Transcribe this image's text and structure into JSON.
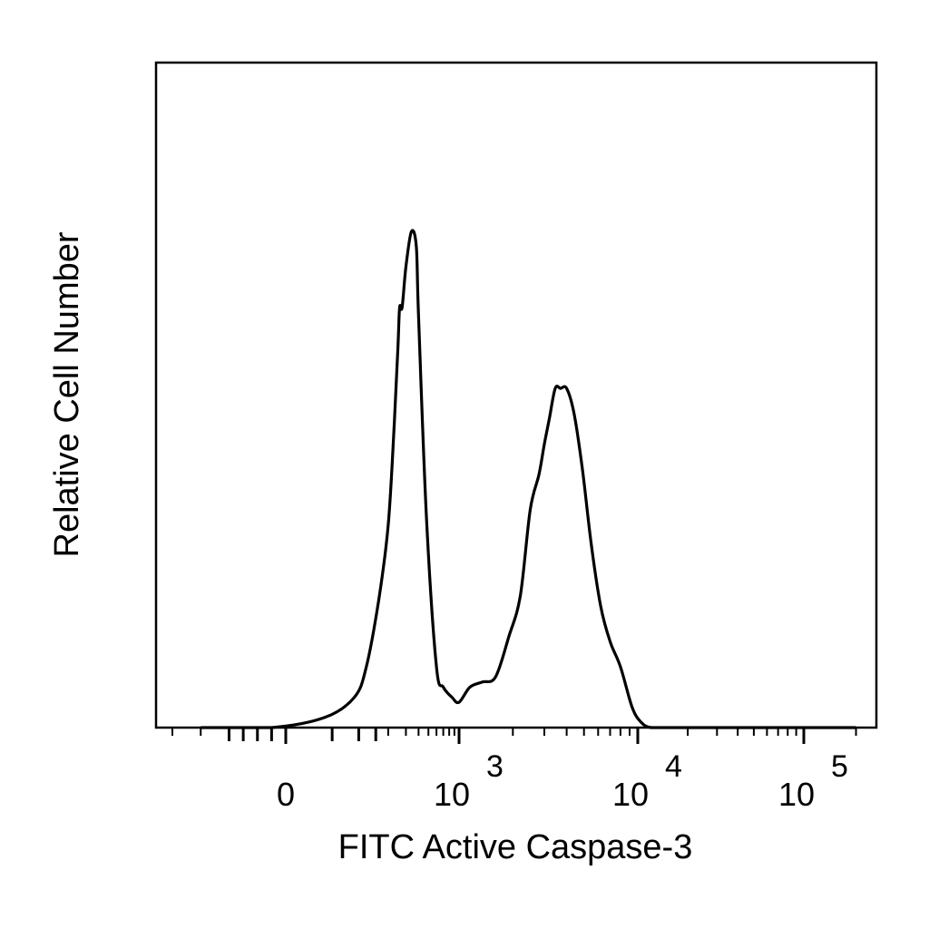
{
  "chart_data": {
    "type": "line",
    "xlabel": "FITC Active Caspase-3",
    "ylabel": "Relative Cell Number",
    "x_scale": "biexponential (logicle)",
    "x_ticks": [
      {
        "base": "0",
        "exp": ""
      },
      {
        "base": "10",
        "exp": "3"
      },
      {
        "base": "10",
        "exp": "4"
      },
      {
        "base": "10",
        "exp": "5"
      }
    ],
    "y_ticks": [],
    "grid": false,
    "legend": "none",
    "series": [
      {
        "color": "#000000",
        "x": [
          -300,
          -50,
          40,
          90,
          120,
          160,
          200,
          230,
          250,
          260,
          275,
          300,
          340,
          380,
          400,
          480,
          600,
          700,
          850,
          1000,
          1150,
          1350,
          1600,
          1900,
          2200,
          2500,
          2800,
          3000,
          3200,
          3450,
          3700,
          4000,
          4400,
          4900,
          5500,
          6200,
          7000,
          8000,
          9300,
          10500,
          12000,
          15000,
          30000,
          100000,
          200000
        ],
        "y": [
          0.0,
          0.0,
          0.02,
          0.06,
          0.12,
          0.25,
          0.4,
          0.6,
          0.75,
          0.83,
          0.83,
          0.91,
          0.98,
          0.95,
          0.81,
          0.41,
          0.12,
          0.08,
          0.06,
          0.05,
          0.08,
          0.09,
          0.1,
          0.18,
          0.26,
          0.43,
          0.5,
          0.56,
          0.61,
          0.67,
          0.67,
          0.67,
          0.62,
          0.51,
          0.36,
          0.24,
          0.17,
          0.12,
          0.04,
          0.01,
          0.0,
          0.0,
          0.0,
          0.0,
          0.0
        ]
      }
    ]
  }
}
